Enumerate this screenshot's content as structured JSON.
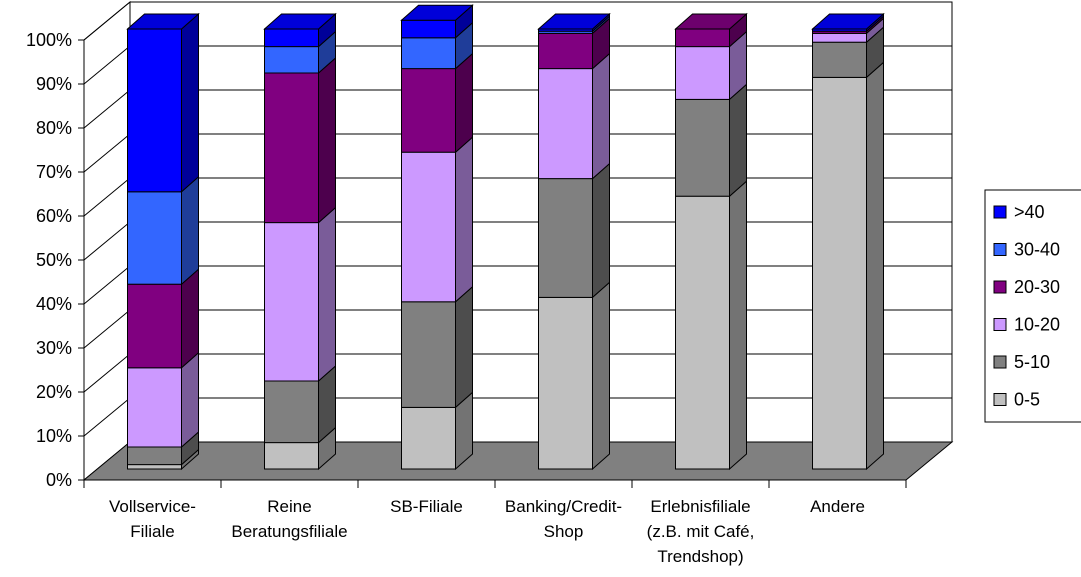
{
  "chart_data": {
    "type": "bar",
    "stacked": true,
    "percent_stacked": true,
    "three_d": true,
    "title": "",
    "xlabel": "",
    "ylabel": "",
    "ylim": [
      0,
      100
    ],
    "y_ticks": [
      "0%",
      "10%",
      "20%",
      "30%",
      "40%",
      "50%",
      "60%",
      "70%",
      "80%",
      "90%",
      "100%"
    ],
    "grid": true,
    "legend_position": "right",
    "categories": [
      [
        "Vollservice-",
        "Filiale"
      ],
      [
        "Reine",
        "Beratungsfiliale"
      ],
      [
        "SB-Filiale"
      ],
      [
        "Banking/Credit-",
        "Shop"
      ],
      [
        "Erlebnisfiliale",
        "(z.B. mit Café,",
        "Trendshop)"
      ],
      [
        "Andere"
      ]
    ],
    "series": [
      {
        "name": "0-5",
        "color": "#c0c0c0",
        "values": [
          1,
          6,
          14,
          39,
          62,
          89
        ]
      },
      {
        "name": "5-10",
        "color": "#808080",
        "values": [
          4,
          14,
          24,
          27,
          22,
          8
        ]
      },
      {
        "name": "10-20",
        "color": "#cc99ff",
        "values": [
          18,
          36,
          34,
          25,
          12,
          2
        ]
      },
      {
        "name": "20-30",
        "color": "#800080",
        "values": [
          19,
          34,
          19,
          8,
          4,
          0.5
        ]
      },
      {
        "name": "30-40",
        "color": "#3366ff",
        "values": [
          21,
          6,
          7,
          0.5,
          0,
          0
        ]
      },
      {
        "name": ">40",
        "color": "#0000ff",
        "values": [
          37,
          4,
          4,
          0.5,
          0,
          0.5
        ]
      }
    ],
    "legend_order": [
      ">40",
      "30-40",
      "20-30",
      "10-20",
      "5-10",
      "0-5"
    ]
  }
}
